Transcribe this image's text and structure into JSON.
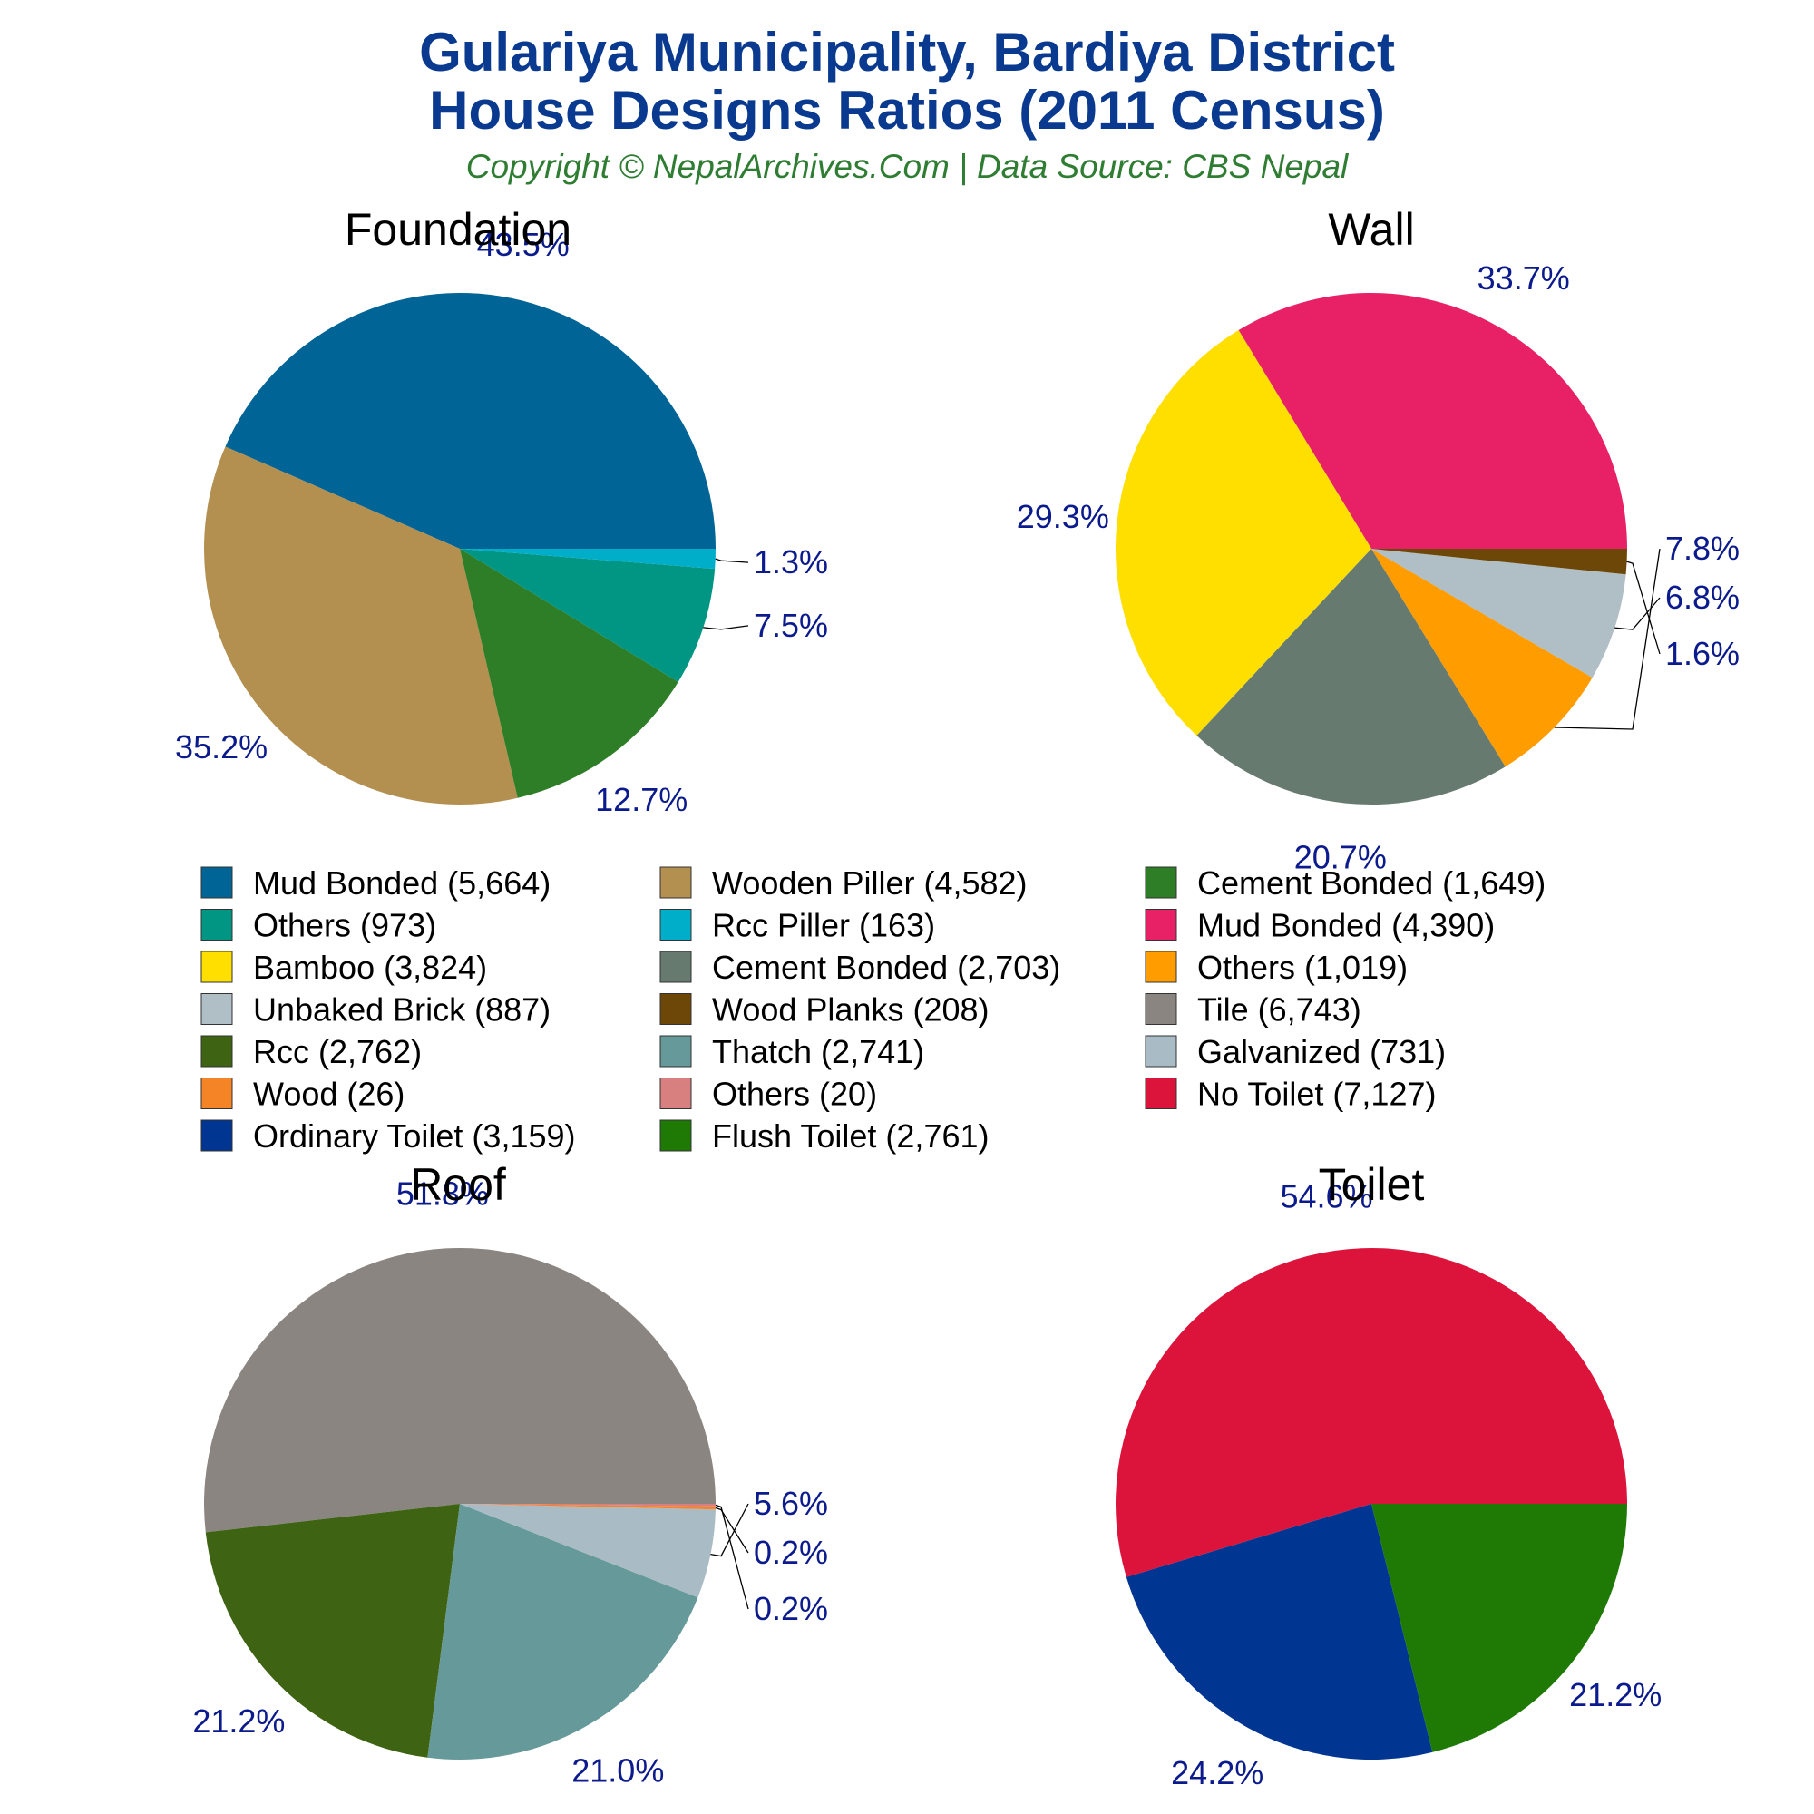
{
  "title": {
    "line1": "Gulariya Municipality, Bardiya District",
    "line2": "House Designs Ratios (2011 Census)"
  },
  "subtitle": "Copyright © NepalArchives.Com | Data Source: CBS Nepal",
  "chart_data": [
    {
      "type": "pie",
      "title": "Foundation",
      "slices": [
        {
          "label": "Mud Bonded",
          "value": 5664,
          "percent_label": "43.5%",
          "color": "#006496"
        },
        {
          "label": "Wooden Piller",
          "value": 4582,
          "percent_label": "35.2%",
          "color": "#b38f50"
        },
        {
          "label": "Cement Bonded",
          "value": 1649,
          "percent_label": "12.7%",
          "color": "#2e7d27"
        },
        {
          "label": "Others",
          "value": 973,
          "percent_label": "7.5%",
          "color": "#009683"
        },
        {
          "label": "Rcc Piller",
          "value": 163,
          "percent_label": "1.3%",
          "color": "#00aec9"
        }
      ]
    },
    {
      "type": "pie",
      "title": "Wall",
      "slices": [
        {
          "label": "Mud Bonded",
          "value": 4390,
          "percent_label": "33.7%",
          "color": "#e82065"
        },
        {
          "label": "Bamboo",
          "value": 3824,
          "percent_label": "29.3%",
          "color": "#ffdf00"
        },
        {
          "label": "Cement Bonded",
          "value": 2703,
          "percent_label": "20.7%",
          "color": "#667a70"
        },
        {
          "label": "Others",
          "value": 1019,
          "percent_label": "7.8%",
          "color": "#ff9c00"
        },
        {
          "label": "Unbaked Brick",
          "value": 887,
          "percent_label": "6.8%",
          "color": "#b0bec5"
        },
        {
          "label": "Wood Planks",
          "value": 208,
          "percent_label": "1.6%",
          "color": "#6d4708"
        }
      ]
    },
    {
      "type": "pie",
      "title": "Roof",
      "slices": [
        {
          "label": "Tile",
          "value": 6743,
          "percent_label": "51.8%",
          "color": "#8b8581"
        },
        {
          "label": "Rcc",
          "value": 2762,
          "percent_label": "21.2%",
          "color": "#3e6313"
        },
        {
          "label": "Thatch",
          "value": 2741,
          "percent_label": "21.0%",
          "color": "#669999"
        },
        {
          "label": "Galvanized",
          "value": 731,
          "percent_label": "5.6%",
          "color": "#a9bbc4"
        },
        {
          "label": "Wood",
          "value": 26,
          "percent_label": "0.2%",
          "color": "#f58426"
        },
        {
          "label": "Others",
          "value": 20,
          "percent_label": "0.2%",
          "color": "#d88080"
        }
      ]
    },
    {
      "type": "pie",
      "title": "Toilet",
      "slices": [
        {
          "label": "No Toilet",
          "value": 7127,
          "percent_label": "54.6%",
          "color": "#dc143c"
        },
        {
          "label": "Ordinary Toilet",
          "value": 3159,
          "percent_label": "24.2%",
          "color": "#003591"
        },
        {
          "label": "Flush Toilet",
          "value": 2761,
          "percent_label": "21.2%",
          "color": "#1f7a05"
        }
      ]
    }
  ],
  "legend": [
    {
      "label": "Mud Bonded (5,664)",
      "color": "#006496"
    },
    {
      "label": "Wooden Piller (4,582)",
      "color": "#b38f50"
    },
    {
      "label": "Cement Bonded (1,649)",
      "color": "#2e7d27"
    },
    {
      "label": "Others (973)",
      "color": "#009683"
    },
    {
      "label": "Rcc Piller (163)",
      "color": "#00aec9"
    },
    {
      "label": "Mud Bonded (4,390)",
      "color": "#e82065"
    },
    {
      "label": "Bamboo (3,824)",
      "color": "#ffdf00"
    },
    {
      "label": "Cement Bonded (2,703)",
      "color": "#667a70"
    },
    {
      "label": "Others (1,019)",
      "color": "#ff9c00"
    },
    {
      "label": "Unbaked Brick (887)",
      "color": "#b0bec5"
    },
    {
      "label": "Wood Planks (208)",
      "color": "#6d4708"
    },
    {
      "label": "Tile (6,743)",
      "color": "#8b8581"
    },
    {
      "label": "Rcc (2,762)",
      "color": "#3e6313"
    },
    {
      "label": "Thatch (2,741)",
      "color": "#669999"
    },
    {
      "label": "Galvanized (731)",
      "color": "#a9bbc4"
    },
    {
      "label": "Wood (26)",
      "color": "#f58426"
    },
    {
      "label": "Others (20)",
      "color": "#d88080"
    },
    {
      "label": "No Toilet (7,127)",
      "color": "#dc143c"
    },
    {
      "label": "Ordinary Toilet (3,159)",
      "color": "#003591"
    },
    {
      "label": "Flush Toilet (2,761)",
      "color": "#1f7a05"
    }
  ]
}
